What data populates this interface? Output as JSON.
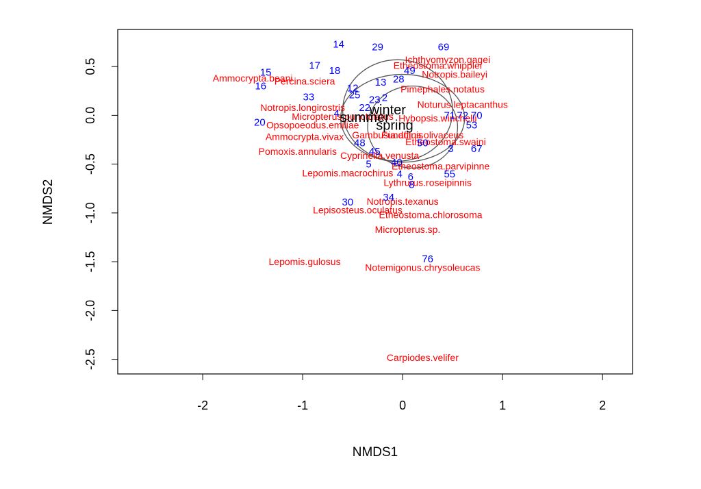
{
  "chart_data": {
    "type": "scatter",
    "title": "",
    "xlabel": "NMDS1",
    "ylabel": "NMDS2",
    "xlim": [
      -2.85,
      2.3
    ],
    "ylim": [
      -2.65,
      0.88
    ],
    "xticks": [
      -2,
      -1,
      0,
      1,
      2
    ],
    "yticks": [
      0.5,
      0.0,
      -0.5,
      -1.0,
      -1.5,
      -2.0,
      -2.5
    ],
    "colors": {
      "species": "#ff0000",
      "sites": "#0000ff",
      "groups": "#000000",
      "ellipses": "#555555"
    },
    "groups": [
      {
        "label": "winter",
        "x": -0.15,
        "y": 0.06
      },
      {
        "label": "summer",
        "x": -0.38,
        "y": -0.02
      },
      {
        "label": "spring",
        "x": -0.08,
        "y": -0.1
      }
    ],
    "ellipses": [
      {
        "cx": -0.05,
        "cy": 0.05,
        "rx": 0.55,
        "ry": 0.52
      },
      {
        "cx": 0.0,
        "cy": -0.03,
        "rx": 0.62,
        "ry": 0.45
      },
      {
        "cx": 0.1,
        "cy": -0.12,
        "rx": 0.45,
        "ry": 0.42
      }
    ],
    "species": [
      {
        "label": "Ammocrypta.beani",
        "x": -1.5,
        "y": 0.38
      },
      {
        "label": "Percina.sciera",
        "x": -0.98,
        "y": 0.35
      },
      {
        "label": "Ichthyomyzon.gagei",
        "x": 0.45,
        "y": 0.57
      },
      {
        "label": "Etheostoma.whipplei",
        "x": 0.35,
        "y": 0.51
      },
      {
        "label": "Notropis.baileyi",
        "x": 0.52,
        "y": 0.42
      },
      {
        "label": "Pimephales.notatus",
        "x": 0.4,
        "y": 0.27
      },
      {
        "label": "Notropis.longirostris",
        "x": -1.0,
        "y": 0.08
      },
      {
        "label": "Noturus.leptacanthus",
        "x": 0.6,
        "y": 0.11
      },
      {
        "label": "Micropterus.punctulatus",
        "x": -0.6,
        "y": -0.01
      },
      {
        "label": "Hybopsis.winchelli",
        "x": 0.35,
        "y": -0.03
      },
      {
        "label": "Opsopoeodus.emiliae",
        "x": -0.9,
        "y": -0.1
      },
      {
        "label": "Ammocrypta.vivax",
        "x": -0.98,
        "y": -0.22
      },
      {
        "label": "Gambusia.affinis",
        "x": -0.15,
        "y": -0.2
      },
      {
        "label": "Fundulus.olivaceus",
        "x": 0.2,
        "y": -0.2
      },
      {
        "label": "Etheostoma.swaini",
        "x": 0.43,
        "y": -0.27
      },
      {
        "label": "Pomoxis.annularis",
        "x": -1.05,
        "y": -0.37
      },
      {
        "label": "Cyprinella.venusta",
        "x": -0.23,
        "y": -0.41
      },
      {
        "label": "Etheostoma.parvipinne",
        "x": 0.38,
        "y": -0.52
      },
      {
        "label": "Lepomis.macrochirus",
        "x": -0.55,
        "y": -0.59
      },
      {
        "label": "Lythrurus.roseipinnis",
        "x": 0.25,
        "y": -0.69
      },
      {
        "label": "Notropis.texanus",
        "x": 0.0,
        "y": -0.88
      },
      {
        "label": "Lepisosteus.oculatus",
        "x": -0.45,
        "y": -0.97
      },
      {
        "label": "Etheostoma.chlorosoma",
        "x": 0.28,
        "y": -1.02
      },
      {
        "label": "Micropterus.sp.",
        "x": 0.05,
        "y": -1.17
      },
      {
        "label": "Lepomis.gulosus",
        "x": -0.98,
        "y": -1.5
      },
      {
        "label": "Notemigonus.chrysoleucas",
        "x": 0.2,
        "y": -1.56
      },
      {
        "label": "Carpiodes.velifer",
        "x": 0.2,
        "y": -2.48
      }
    ],
    "sites": [
      {
        "label": "14",
        "x": -0.64,
        "y": 0.73
      },
      {
        "label": "29",
        "x": -0.25,
        "y": 0.7
      },
      {
        "label": "69",
        "x": 0.41,
        "y": 0.7
      },
      {
        "label": "17",
        "x": -0.88,
        "y": 0.51
      },
      {
        "label": "18",
        "x": -0.68,
        "y": 0.46
      },
      {
        "label": "15",
        "x": -1.37,
        "y": 0.44
      },
      {
        "label": "16",
        "x": -1.42,
        "y": 0.3
      },
      {
        "label": "49",
        "x": 0.07,
        "y": 0.46
      },
      {
        "label": "28",
        "x": -0.04,
        "y": 0.37
      },
      {
        "label": "13",
        "x": -0.22,
        "y": 0.34
      },
      {
        "label": "12",
        "x": -0.5,
        "y": 0.28
      },
      {
        "label": "25",
        "x": -0.48,
        "y": 0.21
      },
      {
        "label": "33",
        "x": -0.94,
        "y": 0.19
      },
      {
        "label": "23",
        "x": -0.28,
        "y": 0.16
      },
      {
        "label": "2",
        "x": -0.18,
        "y": 0.18
      },
      {
        "label": "22",
        "x": -0.38,
        "y": 0.08
      },
      {
        "label": "4",
        "x": -0.66,
        "y": 0.02
      },
      {
        "label": "71",
        "x": 0.47,
        "y": 0.0
      },
      {
        "label": "72",
        "x": 0.6,
        "y": 0.0
      },
      {
        "label": "70",
        "x": 0.74,
        "y": 0.0
      },
      {
        "label": "20",
        "x": -1.43,
        "y": -0.07
      },
      {
        "label": "53",
        "x": 0.69,
        "y": -0.1
      },
      {
        "label": "48",
        "x": -0.43,
        "y": -0.28
      },
      {
        "label": "50",
        "x": 0.2,
        "y": -0.28
      },
      {
        "label": "3",
        "x": 0.48,
        "y": -0.34
      },
      {
        "label": "67",
        "x": 0.74,
        "y": -0.34
      },
      {
        "label": "45",
        "x": -0.28,
        "y": -0.37
      },
      {
        "label": "5",
        "x": -0.34,
        "y": -0.5
      },
      {
        "label": "40",
        "x": -0.06,
        "y": -0.48
      },
      {
        "label": "4",
        "x": -0.03,
        "y": -0.6
      },
      {
        "label": "6",
        "x": 0.08,
        "y": -0.63
      },
      {
        "label": "55",
        "x": 0.47,
        "y": -0.6
      },
      {
        "label": "8",
        "x": 0.09,
        "y": -0.71
      },
      {
        "label": "34",
        "x": -0.14,
        "y": -0.84
      },
      {
        "label": "30",
        "x": -0.55,
        "y": -0.89
      },
      {
        "label": "76",
        "x": 0.25,
        "y": -1.47
      }
    ]
  }
}
